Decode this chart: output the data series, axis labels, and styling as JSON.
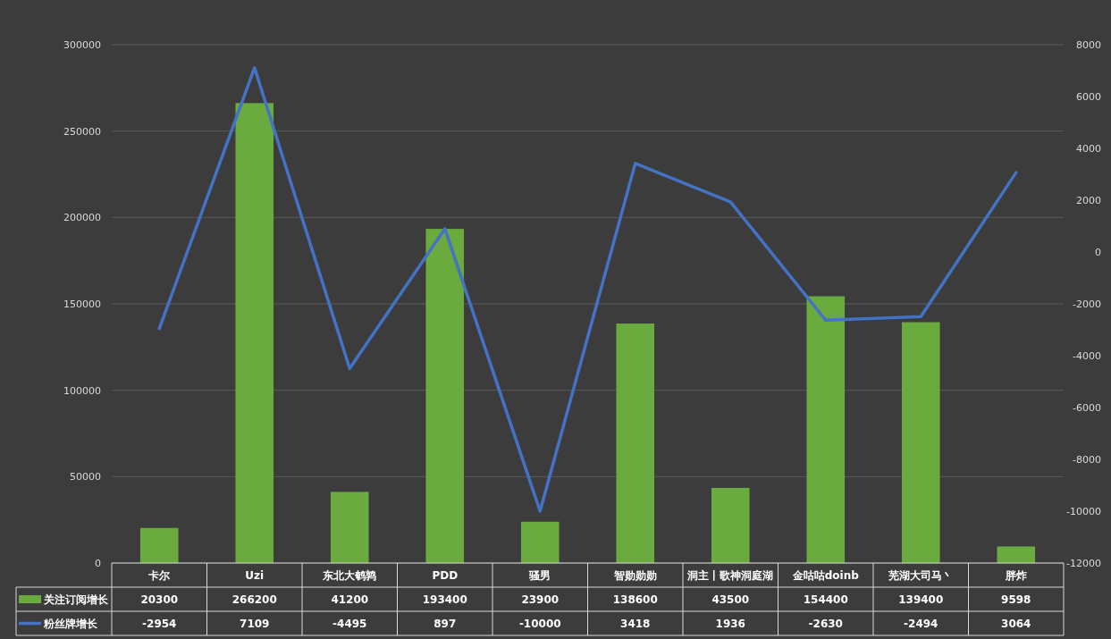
{
  "chart_data": {
    "type": "bar",
    "categories": [
      "卡尔",
      "Uzi",
      "东北大鹌鹑",
      "PDD",
      "骚男",
      "智勋勋勋",
      "洞主丨歌神洞庭湖",
      "金咕咕doinb",
      "芜湖大司马丶",
      "胖炸"
    ],
    "series": [
      {
        "name": "关注订阅增长",
        "color": "#6aaa3f",
        "values": [
          20300,
          266200,
          41200,
          193400,
          23900,
          138600,
          43500,
          154400,
          139400,
          9598
        ]
      },
      {
        "name": "粉丝牌增长",
        "type": "line",
        "axis": "y2",
        "color": "#4472c4",
        "values": [
          -2954,
          7109,
          -4495,
          897,
          -10000,
          3418,
          1936,
          -2630,
          -2494,
          3064
        ]
      }
    ],
    "ylim": [
      0,
      300000
    ],
    "yticks": [
      0,
      50000,
      100000,
      150000,
      200000,
      250000,
      300000
    ],
    "y2lim": [
      -12000,
      8000
    ],
    "y2ticks": [
      -12000,
      -10000,
      -8000,
      -6000,
      -4000,
      -2000,
      0,
      2000,
      4000,
      6000,
      8000
    ],
    "grid": "y",
    "legend": "bottom",
    "data_labels": true
  }
}
